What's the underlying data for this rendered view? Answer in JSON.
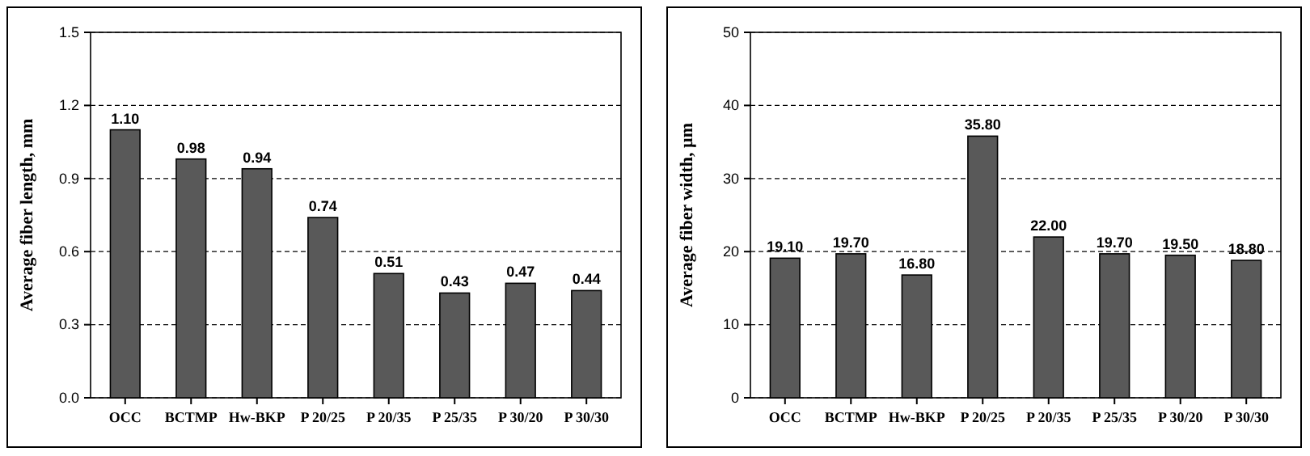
{
  "chart_data": [
    {
      "type": "bar",
      "ylabel": "Average fiber length, mm",
      "categories": [
        "OCC",
        "BCTMP",
        "Hw-BKP",
        "P 20/25",
        "P 20/35",
        "P 25/35",
        "P 30/20",
        "P 30/30"
      ],
      "values": [
        1.1,
        0.98,
        0.94,
        0.74,
        0.51,
        0.43,
        0.47,
        0.44
      ],
      "value_labels": [
        "1.10",
        "0.98",
        "0.94",
        "0.74",
        "0.51",
        "0.43",
        "0.47",
        "0.44"
      ],
      "color": "#595959",
      "ylim": [
        0,
        1.5
      ],
      "yticks": [
        {
          "value": 0,
          "label": "0.0"
        },
        {
          "value": 0.3,
          "label": "0.3"
        },
        {
          "value": 0.6,
          "label": "0.6"
        },
        {
          "value": 0.9,
          "label": "0.9"
        },
        {
          "value": 1.2,
          "label": "1.2"
        },
        {
          "value": 1.5,
          "label": "1.5"
        }
      ],
      "grid": "y"
    },
    {
      "type": "bar",
      "ylabel": "Average fiber width, µm",
      "categories": [
        "OCC",
        "BCTMP",
        "Hw-BKP",
        "P 20/25",
        "P 20/35",
        "P 25/35",
        "P 30/20",
        "P 30/30"
      ],
      "values": [
        19.1,
        19.7,
        16.8,
        35.8,
        22.0,
        19.7,
        19.5,
        18.8
      ],
      "value_labels": [
        "19.10",
        "19.70",
        "16.80",
        "35.80",
        "22.00",
        "19.70",
        "19.50",
        "18.80"
      ],
      "color": "#595959",
      "ylim": [
        0,
        50
      ],
      "yticks": [
        0,
        10,
        20,
        30,
        40,
        50
      ],
      "grid": "y"
    }
  ]
}
